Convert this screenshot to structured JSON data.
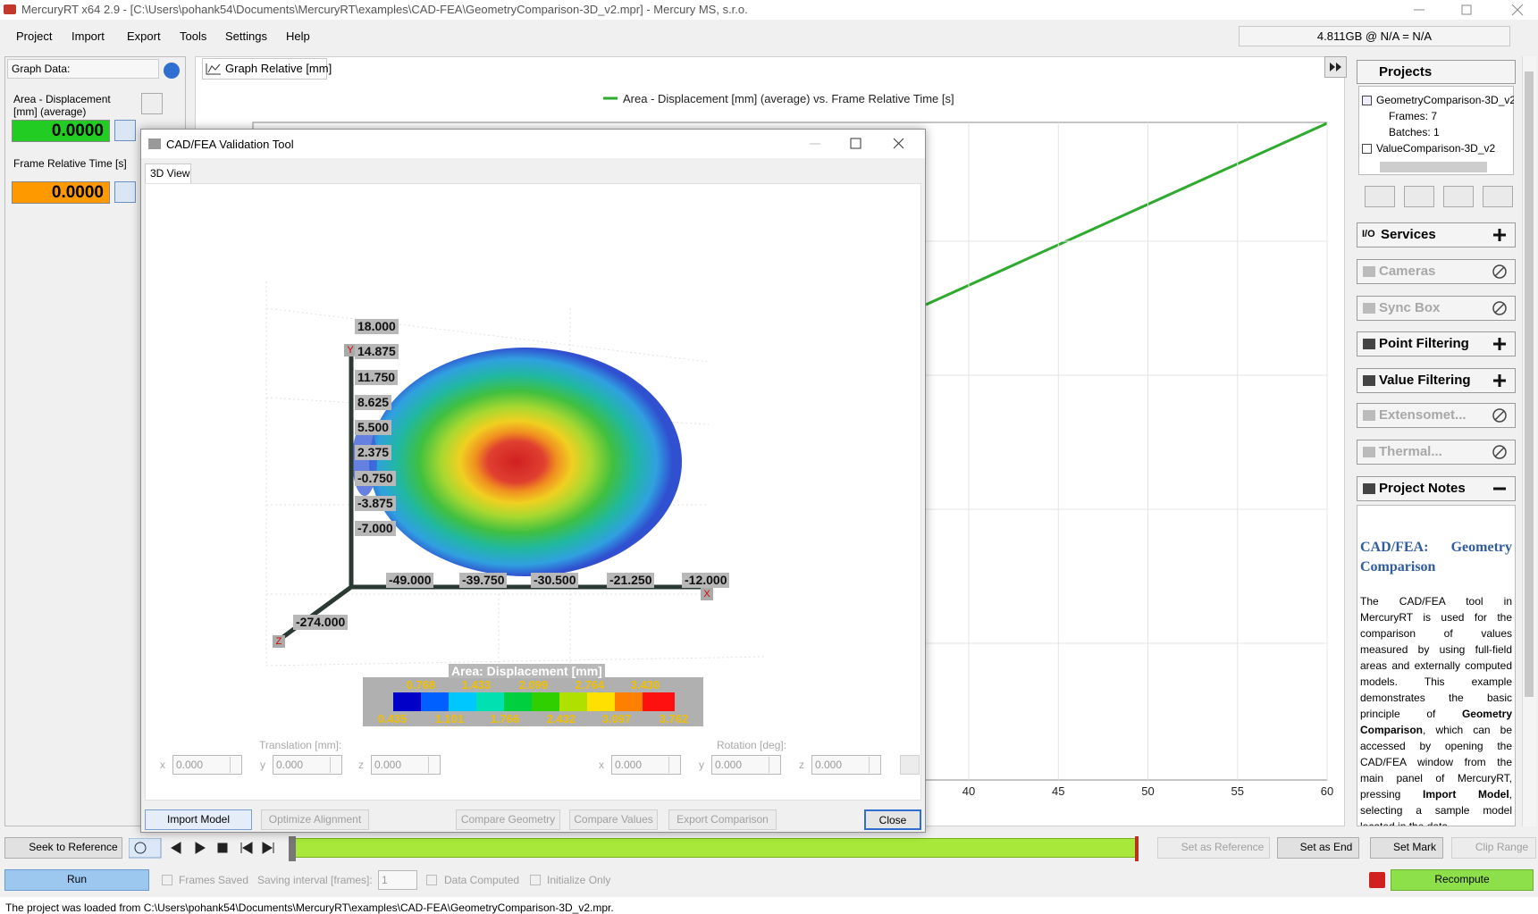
{
  "window": {
    "title": "MercuryRT x64 2.9 - [C:\\Users\\pohank54\\Documents\\MercuryRT\\examples\\CAD-FEA\\GeometryComparison-3D_v2.mpr] - Mercury MS, s.r.o."
  },
  "menu": [
    "Project",
    "Import",
    "Export",
    "Tools",
    "Settings",
    "Help"
  ],
  "memory": "4.811GB @ N/A = N/A",
  "graph_data": {
    "title": "Graph Data:",
    "items": [
      {
        "label": "Area - Displacement [mm] (average)",
        "value": "0.0000",
        "color": "#22cc22"
      },
      {
        "label": "Frame Relative Time [s]",
        "value": "0.0000",
        "color": "#ff9900"
      }
    ]
  },
  "graph": {
    "tab": "Graph Relative [mm]",
    "legend": "Area - Displacement [mm] (average) vs. Frame Relative Time [s]",
    "xticks": [
      40,
      45,
      50,
      55,
      60
    ]
  },
  "dialog": {
    "title": "CAD/FEA Validation Tool",
    "tab": "3D View",
    "y_axis_letter": "Y",
    "x_axis_letter": "X",
    "z_axis_letter": "Z",
    "y_labels": [
      "18.000",
      "14.875",
      "11.750",
      "8.625",
      "5.500",
      "2.375",
      "-0.750",
      "-3.875",
      "-7.000"
    ],
    "x_labels": [
      "-49.000",
      "-39.750",
      "-30.500",
      "-21.250",
      "-12.000"
    ],
    "z_labels": [
      "-274.000"
    ],
    "colorbar": {
      "title": "Area: Displacement [mm]",
      "top_labels": [
        "0.768",
        "1.433",
        "2.099",
        "2.764",
        "3.430"
      ],
      "bottom_labels": [
        "0.435",
        "1.101",
        "1.766",
        "2.432",
        "3.097",
        "3.762"
      ]
    },
    "translation": {
      "label": "Translation [mm]:",
      "axes": [
        "x",
        "y",
        "z"
      ],
      "values": [
        "0.000",
        "0.000",
        "0.000"
      ]
    },
    "rotation": {
      "label": "Rotation [deg]:",
      "axes": [
        "x",
        "y",
        "z"
      ],
      "values": [
        "0.000",
        "0.000",
        "0.000"
      ]
    },
    "buttons": [
      {
        "label": "Import Model",
        "enabled": true
      },
      {
        "label": "Optimize Alignment",
        "enabled": false
      },
      {
        "label": "Compare Geometry",
        "enabled": false
      },
      {
        "label": "Compare Values",
        "enabled": false
      },
      {
        "label": "Export Comparison",
        "enabled": false
      },
      {
        "label": "Close",
        "enabled": true
      }
    ]
  },
  "projects": {
    "title": "Projects",
    "items": [
      "GeometryComparison-3D_v2",
      "Frames: 7",
      "Batches: 1",
      "ValueComparison-3D_v2"
    ]
  },
  "sections": [
    {
      "icon": "I/O",
      "label": "Services",
      "state": "expand"
    },
    {
      "label": "Cameras",
      "state": "disabled"
    },
    {
      "label": "Sync Box",
      "state": "disabled"
    },
    {
      "label": "Point Filtering",
      "state": "expand"
    },
    {
      "label": "Value Filtering",
      "state": "expand"
    },
    {
      "label": "Extensomet...",
      "state": "disabled"
    },
    {
      "label": "Thermal...",
      "state": "disabled"
    },
    {
      "label": "Project Notes",
      "state": "collapse"
    }
  ],
  "notes": {
    "title": "CAD/FEA: Geometry Comparison",
    "text": [
      {
        "t": "The CAD/FEA tool in MercuryRT is used for the comparison of values measured by using full-field areas and externally computed models. This example demonstrates the basic principle of ",
        "bold": false
      },
      {
        "t": "Geometry Comparison",
        "bold": true
      },
      {
        "t": ", which can be accessed by opening the CAD/FEA window from the main panel of MercuryRT, pressing ",
        "bold": false
      },
      {
        "t": "Import Model",
        "bold": true
      },
      {
        "t": ", selecting a sample model located in the data",
        "bold": false
      }
    ]
  },
  "toolbar": {
    "seek": "Seek to Reference",
    "set_reference": "Set as Reference",
    "set_end": "Set as End",
    "set_mark": "Set Mark",
    "clip_range": "Clip Range",
    "run": "Run",
    "frames_saved": "Frames Saved",
    "saving_interval": "Saving interval [frames]:",
    "interval_value": "1",
    "data_computed": "Data Computed",
    "initialize_only": "Initialize Only",
    "recompute": "Recompute"
  },
  "status": "The project was loaded from C:\\Users\\pohank54\\Documents\\MercuryRT\\examples\\CAD-FEA\\GeometryComparison-3D_v2.mpr."
}
